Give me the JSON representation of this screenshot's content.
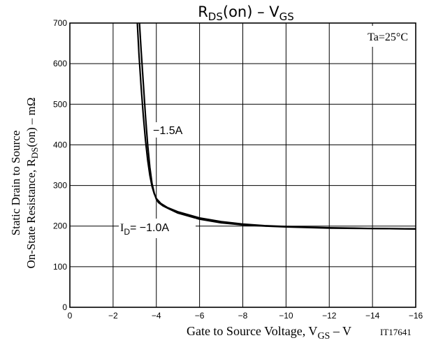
{
  "chart_data": {
    "type": "line",
    "title": {
      "main": "R",
      "main_sub": "DS",
      "rest": "(on)  –  V",
      "rest_sub": "GS"
    },
    "ylabel": {
      "line1": "Static Drain to Source",
      "line2_a": "On-State Resistance, R",
      "line2_sub": "DS",
      "line2_b": "(on)  –  mΩ"
    },
    "xlabel": {
      "a": "Gate to Source Voltage, V",
      "sub": "GS",
      "b": "  –  V"
    },
    "figure_code": "IT17641",
    "condition": "Ta=25°C",
    "xlim": [
      0,
      -16
    ],
    "ylim": [
      0,
      700
    ],
    "x_ticks": [
      0,
      -2,
      -4,
      -6,
      -8,
      -10,
      -12,
      -14,
      -16
    ],
    "x_tick_labels": [
      "0",
      "−2",
      "−4",
      "−6",
      "−8",
      "−10",
      "−12",
      "−14",
      "−16"
    ],
    "y_ticks": [
      0,
      100,
      200,
      300,
      400,
      500,
      600,
      700
    ],
    "y_tick_labels": [
      "0",
      "100",
      "200",
      "300",
      "400",
      "500",
      "600",
      "700"
    ],
    "grid": true,
    "annotations": {
      "curve_a_label": "−1.5A",
      "curve_b_prefix": "I",
      "curve_b_sub": "D",
      "curve_b_value": "= −1.0A"
    },
    "series": [
      {
        "name": "−1.5A",
        "x": [
          -3.12,
          -3.2,
          -3.3,
          -3.4,
          -3.5,
          -3.6,
          -3.7,
          -3.8,
          -3.9,
          -4.0,
          -4.2,
          -4.5,
          -5.0,
          -6.0,
          -7.0,
          -8.0,
          -9.0,
          -10.0,
          -12.0,
          -14.0,
          -16.0
        ],
        "y": [
          700,
          620,
          540,
          470,
          410,
          362,
          325,
          298,
          280,
          268,
          256,
          246,
          235,
          220,
          211,
          205,
          201,
          199,
          196,
          194,
          193
        ]
      },
      {
        "name": "I D = −1.0A",
        "x": [
          -3.22,
          -3.3,
          -3.4,
          -3.5,
          -3.6,
          -3.7,
          -3.8,
          -3.9,
          -4.0,
          -4.1,
          -4.3,
          -4.6,
          -5.0,
          -6.0,
          -7.0,
          -8.0,
          -9.0,
          -10.0,
          -12.0,
          -14.0,
          -16.0
        ],
        "y": [
          700,
          630,
          550,
          470,
          400,
          345,
          305,
          282,
          266,
          258,
          250,
          242,
          232,
          217,
          208,
          203,
          200,
          198,
          195,
          194,
          193
        ]
      }
    ]
  }
}
